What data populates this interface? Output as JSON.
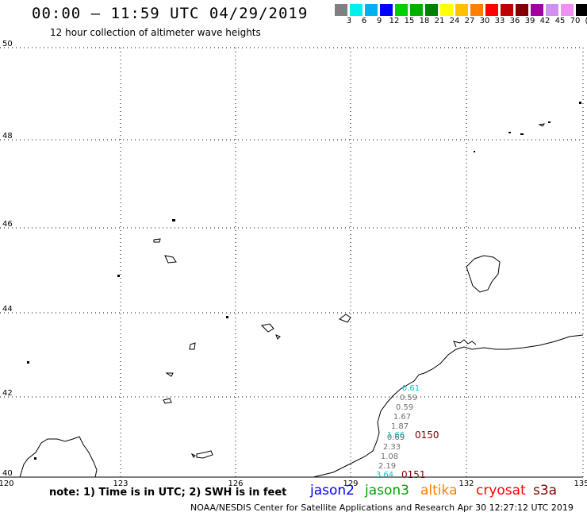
{
  "header": {
    "title": "00:00 – 11:59 UTC 04/29/2019",
    "subtitle": "12 hour collection of altimeter wave heights"
  },
  "legend": {
    "colors": [
      "#808080",
      "#00f0f0",
      "#00b0f0",
      "#0000ff",
      "#00d000",
      "#00b000",
      "#008000",
      "#ffff00",
      "#ffc000",
      "#ff8000",
      "#ff0000",
      "#c00000",
      "#800000",
      "#a000a0",
      "#d090f0",
      "#f090f0",
      "#000000"
    ],
    "labels": [
      "3",
      "6",
      "9",
      "12",
      "15",
      "18",
      "21",
      "24",
      "27",
      "30",
      "33",
      "36",
      "39",
      "42",
      "45",
      "70"
    ],
    "unit": "(ft)"
  },
  "map": {
    "lat_labels": [
      "50",
      "48",
      "46",
      "44",
      "42",
      "40"
    ],
    "lon_labels": [
      "120",
      "123",
      "126",
      "129",
      "132",
      "135"
    ],
    "wave_labels": [
      {
        "text": "0.61",
        "color": "#00c8c8"
      },
      {
        "text": "0.59",
        "color": "#707070"
      },
      {
        "text": "0.59",
        "color": "#707070"
      },
      {
        "text": "1.67",
        "color": "#707070"
      },
      {
        "text": "1.87",
        "color": "#707070"
      },
      {
        "text": "1.66",
        "color": "#00c8c8"
      },
      {
        "text": "0.69",
        "color": "#707070"
      },
      {
        "text": "2.33",
        "color": "#707070"
      },
      {
        "text": "1.08",
        "color": "#707070"
      },
      {
        "text": "2.19",
        "color": "#707070"
      },
      {
        "text": "3.64",
        "color": "#00c8c8"
      }
    ],
    "time_labels": [
      {
        "text": "0150",
        "color": "#800000"
      },
      {
        "text": "0151",
        "color": "#800000"
      }
    ]
  },
  "footer": {
    "note": "note: 1) Time is in UTC; 2) SWH is in feet",
    "satellites": [
      {
        "name": "jason2",
        "color": "#0000ff"
      },
      {
        "name": "jason3",
        "color": "#00a000"
      },
      {
        "name": "altika",
        "color": "#ff8000"
      },
      {
        "name": "cryosat",
        "color": "#ff0000"
      },
      {
        "name": "s3a",
        "color": "#800000"
      }
    ],
    "credit": "NOAA/NESDIS Center for Satellite Applications and Research   Apr 30 12:27:12 UTC 2019"
  }
}
